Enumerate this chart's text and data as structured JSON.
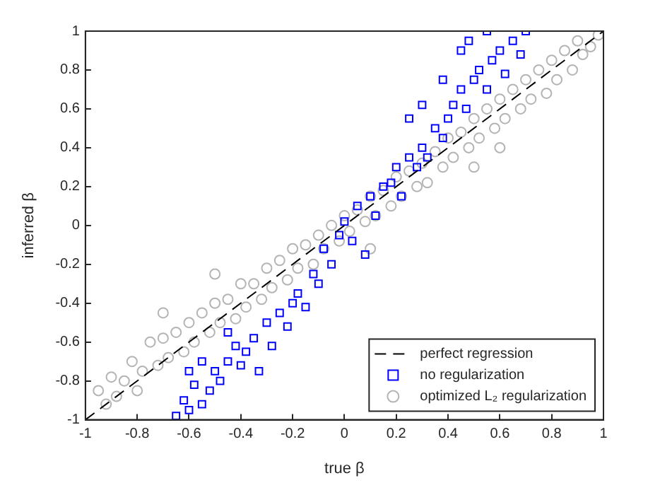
{
  "chart_data": {
    "type": "scatter",
    "xlabel": "true β",
    "ylabel": "inferred β",
    "xlim": [
      -1,
      1
    ],
    "ylim": [
      -1,
      1
    ],
    "xticks": [
      -1,
      -0.8,
      -0.6,
      -0.4,
      -0.2,
      0,
      0.2,
      0.4,
      0.6,
      0.8,
      1
    ],
    "yticks": [
      -1,
      -0.8,
      -0.6,
      -0.4,
      -0.2,
      0,
      0.2,
      0.4,
      0.6,
      0.8,
      1
    ],
    "grid": false,
    "legend": "bottom right",
    "series": [
      {
        "name": "perfect regression",
        "type": "line",
        "color": "#000000",
        "line_style": "dashed",
        "marker": "none",
        "x": [
          -1,
          1
        ],
        "values": [
          -1,
          1
        ]
      },
      {
        "name": "no regularization",
        "color": "#0000ff",
        "marker": "square",
        "x": [
          -0.65,
          -0.62,
          -0.6,
          -0.55,
          -0.58,
          -0.52,
          -0.5,
          -0.48,
          -0.45,
          -0.42,
          -0.4,
          -0.38,
          -0.35,
          -0.33,
          -0.3,
          -0.28,
          -0.25,
          -0.22,
          -0.2,
          -0.18,
          -0.15,
          -0.12,
          -0.1,
          -0.08,
          -0.05,
          -0.02,
          0,
          0.03,
          0.05,
          0.08,
          0.1,
          0.12,
          0.15,
          0.18,
          0.2,
          0.22,
          0.25,
          0.28,
          0.3,
          0.32,
          0.35,
          0.38,
          0.4,
          0.42,
          0.45,
          0.47,
          0.5,
          0.52,
          0.55,
          0.57,
          0.6,
          0.62,
          0.65,
          0.68,
          0.7,
          0.55,
          0.45,
          0.38,
          0.3,
          0.48,
          0.25,
          -0.55,
          -0.45,
          -0.6
        ],
        "values": [
          -0.98,
          -0.9,
          -0.95,
          -0.92,
          -0.82,
          -0.85,
          -0.75,
          -0.8,
          -0.7,
          -0.62,
          -0.72,
          -0.65,
          -0.58,
          -0.75,
          -0.5,
          -0.62,
          -0.45,
          -0.52,
          -0.4,
          -0.35,
          -0.42,
          -0.25,
          -0.3,
          -0.12,
          -0.2,
          -0.05,
          0.02,
          -0.08,
          0.1,
          -0.15,
          0.15,
          0.05,
          0.2,
          0.22,
          0.3,
          0.15,
          0.35,
          0.3,
          0.4,
          0.35,
          0.5,
          0.45,
          0.55,
          0.62,
          0.7,
          0.6,
          0.75,
          0.8,
          0.7,
          0.85,
          0.9,
          0.78,
          0.95,
          0.88,
          1,
          1,
          0.9,
          0.75,
          0.62,
          0.95,
          0.55,
          -0.7,
          -0.55,
          -0.75
        ]
      },
      {
        "name": "optimized L₂ regularization",
        "color": "#b4b4b4",
        "marker": "circle",
        "x": [
          -0.95,
          -0.92,
          -0.9,
          -0.88,
          -0.85,
          -0.82,
          -0.8,
          -0.78,
          -0.75,
          -0.72,
          -0.7,
          -0.68,
          -0.65,
          -0.62,
          -0.6,
          -0.58,
          -0.55,
          -0.52,
          -0.5,
          -0.48,
          -0.45,
          -0.42,
          -0.4,
          -0.38,
          -0.35,
          -0.32,
          -0.3,
          -0.28,
          -0.25,
          -0.22,
          -0.2,
          -0.18,
          -0.15,
          -0.12,
          -0.1,
          -0.08,
          -0.05,
          -0.02,
          0,
          0.02,
          0.05,
          0.08,
          0.1,
          0.12,
          0.15,
          0.18,
          0.2,
          0.22,
          0.25,
          0.28,
          0.3,
          0.32,
          0.35,
          0.38,
          0.4,
          0.42,
          0.45,
          0.48,
          0.5,
          0.52,
          0.55,
          0.58,
          0.6,
          0.62,
          0.65,
          0.68,
          0.7,
          0.72,
          0.75,
          0.78,
          0.8,
          0.82,
          0.85,
          0.88,
          0.9,
          0.92,
          0.95,
          0.98,
          0.5,
          0.6,
          -0.5,
          -0.7,
          0.1
        ],
        "values": [
          -0.85,
          -0.92,
          -0.78,
          -0.88,
          -0.8,
          -0.7,
          -0.85,
          -0.75,
          -0.6,
          -0.72,
          -0.58,
          -0.68,
          -0.55,
          -0.65,
          -0.5,
          -0.6,
          -0.45,
          -0.55,
          -0.4,
          -0.5,
          -0.38,
          -0.48,
          -0.3,
          -0.42,
          -0.3,
          -0.38,
          -0.22,
          -0.32,
          -0.18,
          -0.28,
          -0.12,
          -0.22,
          -0.1,
          -0.2,
          -0.05,
          -0.12,
          0,
          -0.08,
          0.05,
          -0.03,
          0.08,
          0.02,
          0.15,
          0.05,
          0.18,
          0.1,
          0.25,
          0.15,
          0.28,
          0.2,
          0.32,
          0.22,
          0.38,
          0.3,
          0.45,
          0.35,
          0.48,
          0.4,
          0.55,
          0.45,
          0.6,
          0.5,
          0.65,
          0.55,
          0.7,
          0.6,
          0.75,
          0.65,
          0.8,
          0.68,
          0.85,
          0.75,
          0.9,
          0.8,
          0.95,
          0.88,
          0.92,
          0.98,
          0.3,
          0.4,
          -0.25,
          -0.45,
          -0.12
        ]
      }
    ]
  }
}
